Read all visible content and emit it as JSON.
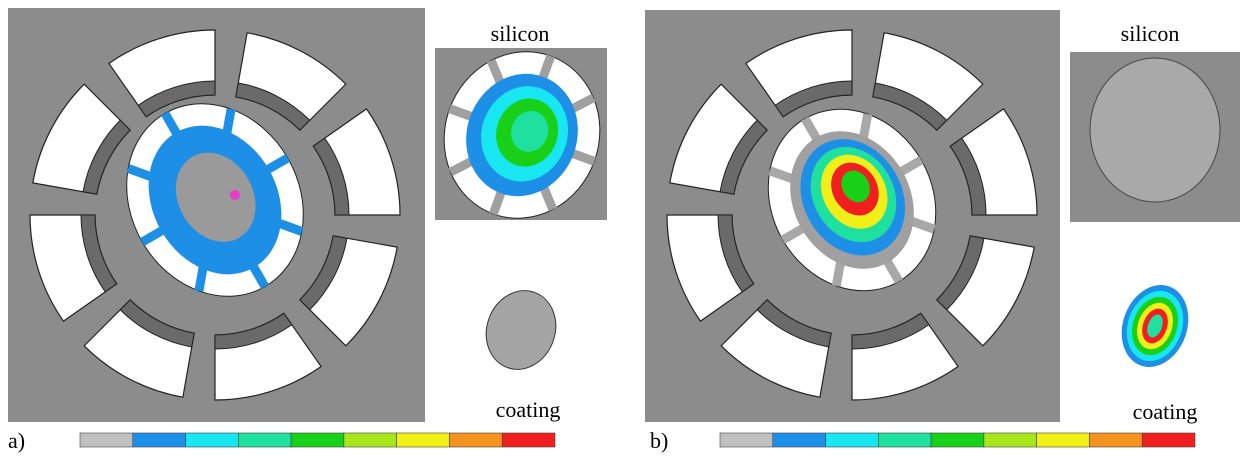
{
  "panels": [
    {
      "tag": "a)",
      "inset_label": "silicon",
      "part_label": "coating"
    },
    {
      "tag": "b)",
      "inset_label": "silicon",
      "part_label": "coating"
    }
  ],
  "colorbar": {
    "colors": [
      "#c0c0c0",
      "#1e8fe6",
      "#18e6f0",
      "#20e0a0",
      "#19d019",
      "#a8e61a",
      "#f0f018",
      "#f4941e",
      "#f01e1e"
    ]
  }
}
